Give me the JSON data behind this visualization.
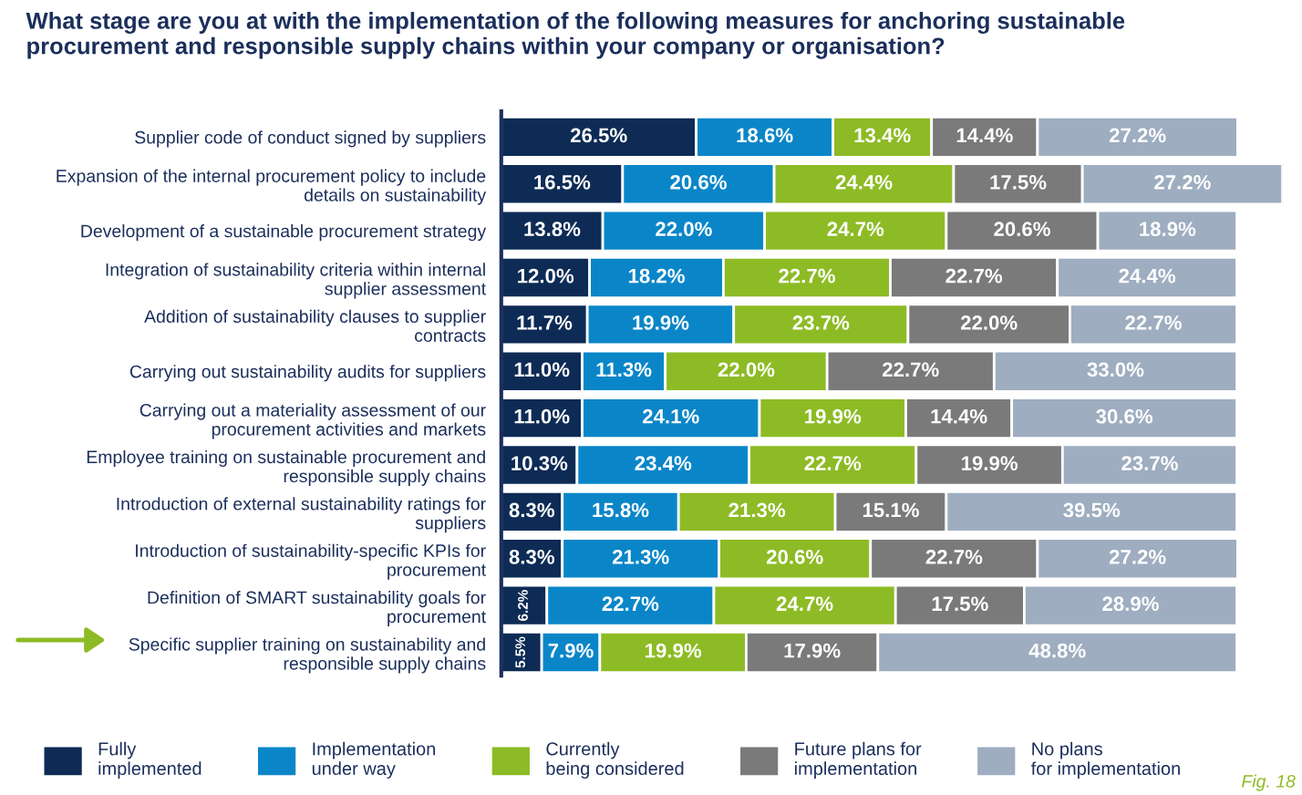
{
  "chart_data": {
    "type": "bar",
    "orientation": "horizontal",
    "stacked": true,
    "legend": "bottom",
    "grid": false,
    "title": "What stage are you at with the implementation of the following measures for anchoring sustainable\nprocurement and responsible supply chains within your company or organisation?",
    "annotations": [
      "Fig. 18"
    ],
    "categories": [
      "Supplier code of conduct signed by suppliers",
      "Expansion of the internal procurement policy to include\ndetails on sustainability",
      "Development of a sustainable procurement strategy",
      "Integration of sustainability criteria within internal\nsupplier assessment",
      "Addition of sustainability clauses to supplier\ncontracts",
      "Carrying out sustainability audits for suppliers",
      "Carrying out a materiality assessment of our\nprocurement activities and markets",
      "Employee training on sustainable procurement and\nresponsible supply chains",
      "Introduction of external sustainability ratings for\nsuppliers",
      "Introduction of sustainability-specific KPIs for\nprocurement",
      "Definition of SMART sustainability goals for\nprocurement",
      "Specific supplier training on sustainability and\nresponsible supply chains"
    ],
    "series": [
      {
        "name": "Fully\nimplemented",
        "color": "#0d2b55",
        "values": [
          26.5,
          16.5,
          13.8,
          12.0,
          11.7,
          11.0,
          11.0,
          10.3,
          8.3,
          8.3,
          6.2,
          5.5
        ],
        "value_labels": [
          "26.5%",
          "16.5%",
          "13.8%",
          "12.0%",
          "11.7%",
          "11.0%",
          "11.0%",
          "10.3%",
          "8.3%",
          "8.3%",
          "6.2%",
          "5.5%"
        ]
      },
      {
        "name": "Implementation\nunder way",
        "color": "#0a86c8",
        "values": [
          18.6,
          20.6,
          22.0,
          18.2,
          19.9,
          11.3,
          24.1,
          23.4,
          15.8,
          21.3,
          22.7,
          7.9
        ],
        "value_labels": [
          "18.6%",
          "20.6%",
          "22.0%",
          "18.2%",
          "19.9%",
          "11.3%",
          "24.1%",
          "23.4%",
          "15.8%",
          "21.3%",
          "22.7%",
          "7.9%"
        ]
      },
      {
        "name": "Currently\nbeing considered",
        "color": "#8dbb25",
        "values": [
          13.4,
          24.4,
          24.7,
          22.7,
          23.7,
          22.0,
          19.9,
          22.7,
          21.3,
          20.6,
          24.7,
          19.9
        ],
        "value_labels": [
          "13.4%",
          "24.4%",
          "24.7%",
          "22.7%",
          "23.7%",
          "22.0%",
          "19.9%",
          "22.7%",
          "21.3%",
          "20.6%",
          "24.7%",
          "19.9%"
        ]
      },
      {
        "name": "Future plans for\nimplementation",
        "color": "#7a7a7a",
        "values": [
          14.4,
          17.5,
          20.6,
          22.7,
          22.0,
          22.7,
          14.4,
          19.9,
          15.1,
          22.7,
          17.5,
          17.9
        ],
        "value_labels": [
          "14.4%",
          "17.5%",
          "20.6%",
          "22.7%",
          "22.0%",
          "22.7%",
          "14.4%",
          "19.9%",
          "15.1%",
          "22.7%",
          "17.5%",
          "17.9%"
        ]
      },
      {
        "name": "No plans\nfor implementation",
        "color": "#9eadc0",
        "values": [
          27.2,
          27.2,
          18.9,
          24.4,
          22.7,
          33.0,
          30.6,
          23.7,
          39.5,
          27.2,
          28.9,
          48.8
        ],
        "value_labels": [
          "27.2%",
          "27.2%",
          "18.9%",
          "24.4%",
          "22.7%",
          "33.0%",
          "30.6%",
          "23.7%",
          "39.5%",
          "27.2%",
          "28.9%",
          "48.8%"
        ]
      }
    ]
  }
}
